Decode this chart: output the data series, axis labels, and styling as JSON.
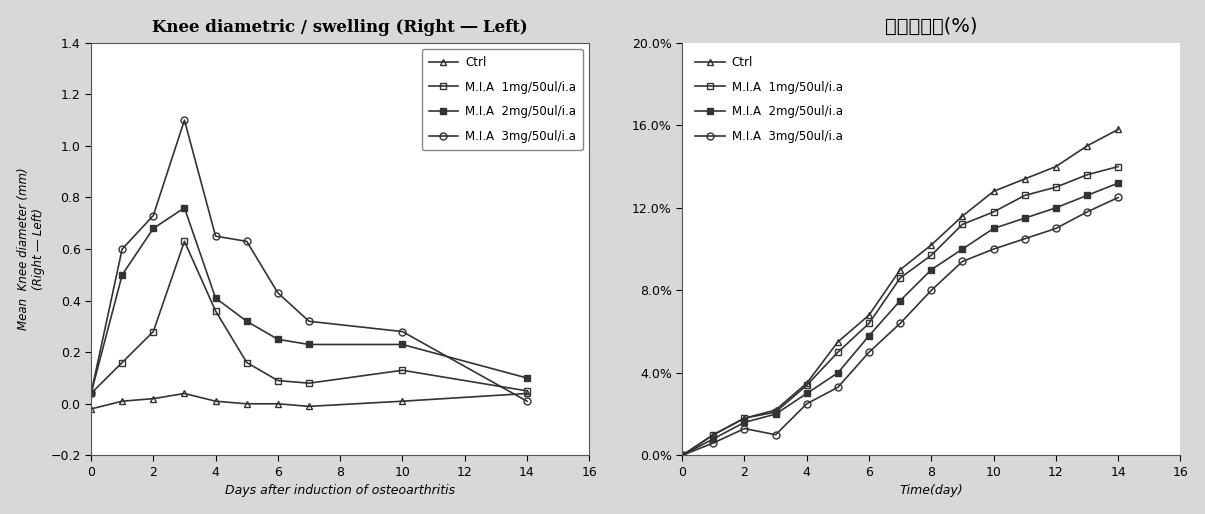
{
  "left_title": "Knee diametric / swelling (Right ― Left)",
  "left_xlabel": "Days after induction of osteoarthritis",
  "left_ylabel": "Mean  Knee diameter (mm)\n(Right ― Left)",
  "left_xlim": [
    0,
    16
  ],
  "left_ylim": [
    -0.2,
    1.4
  ],
  "left_yticks": [
    -0.2,
    0.0,
    0.2,
    0.4,
    0.6,
    0.8,
    1.0,
    1.2,
    1.4
  ],
  "left_xticks": [
    0,
    2,
    4,
    6,
    8,
    10,
    12,
    14,
    16
  ],
  "left_series": {
    "Ctrl": {
      "x": [
        0,
        1,
        2,
        3,
        4,
        5,
        6,
        7,
        10,
        14
      ],
      "y": [
        -0.02,
        0.01,
        0.02,
        0.04,
        0.01,
        0.0,
        0.0,
        -0.01,
        0.01,
        0.04
      ],
      "marker": "^",
      "fillstyle": "none",
      "linewidth": 1.2,
      "markersize": 5,
      "color": "#333333"
    },
    "M.I.A 1mg/50ul/i.a": {
      "x": [
        0,
        1,
        2,
        3,
        4,
        5,
        6,
        7,
        10,
        14
      ],
      "y": [
        0.04,
        0.16,
        0.28,
        0.63,
        0.36,
        0.16,
        0.09,
        0.08,
        0.13,
        0.05
      ],
      "marker": "s",
      "fillstyle": "none",
      "linewidth": 1.2,
      "markersize": 5,
      "color": "#333333"
    },
    "M.I.A 2mg/50ul/i.a": {
      "x": [
        0,
        1,
        2,
        3,
        4,
        5,
        6,
        7,
        10,
        14
      ],
      "y": [
        0.04,
        0.5,
        0.68,
        0.76,
        0.41,
        0.32,
        0.25,
        0.23,
        0.23,
        0.1
      ],
      "marker": "s",
      "fillstyle": "full",
      "linewidth": 1.2,
      "markersize": 5,
      "color": "#333333"
    },
    "M.I.A 3mg/50ul/i.a": {
      "x": [
        0,
        1,
        2,
        3,
        4,
        5,
        6,
        7,
        10,
        14
      ],
      "y": [
        0.04,
        0.6,
        0.73,
        1.1,
        0.65,
        0.63,
        0.43,
        0.32,
        0.28,
        0.01
      ],
      "marker": "o",
      "fillstyle": "none",
      "linewidth": 1.2,
      "markersize": 5,
      "color": "#333333"
    }
  },
  "right_title": "체중증가율(%)",
  "right_xlabel": "Time(day)",
  "right_xlim": [
    0,
    16
  ],
  "right_ylim": [
    0.0,
    0.2
  ],
  "right_yticks": [
    0.0,
    0.04,
    0.08,
    0.12,
    0.16,
    0.2
  ],
  "right_ytick_labels": [
    "0.0%",
    "4.0%",
    "8.0%",
    "12.0%",
    "16.0%",
    "20.0%"
  ],
  "right_xticks": [
    0,
    2,
    4,
    6,
    8,
    10,
    12,
    14,
    16
  ],
  "right_series": {
    "Ctrl": {
      "x": [
        0,
        1,
        2,
        3,
        4,
        5,
        6,
        7,
        8,
        9,
        10,
        11,
        12,
        13,
        14
      ],
      "y": [
        0.0,
        0.01,
        0.018,
        0.022,
        0.035,
        0.055,
        0.068,
        0.09,
        0.102,
        0.116,
        0.128,
        0.134,
        0.14,
        0.15,
        0.158
      ],
      "marker": "^",
      "fillstyle": "none",
      "linewidth": 1.2,
      "markersize": 5,
      "color": "#333333"
    },
    "M.I.A 1mg/50ul/i.a": {
      "x": [
        0,
        1,
        2,
        3,
        4,
        5,
        6,
        7,
        8,
        9,
        10,
        11,
        12,
        13,
        14
      ],
      "y": [
        0.0,
        0.01,
        0.018,
        0.021,
        0.034,
        0.05,
        0.064,
        0.086,
        0.097,
        0.112,
        0.118,
        0.126,
        0.13,
        0.136,
        0.14
      ],
      "marker": "s",
      "fillstyle": "none",
      "linewidth": 1.2,
      "markersize": 5,
      "color": "#333333"
    },
    "M.I.A 2mg/50ul/i.a": {
      "x": [
        0,
        1,
        2,
        3,
        4,
        5,
        6,
        7,
        8,
        9,
        10,
        11,
        12,
        13,
        14
      ],
      "y": [
        0.0,
        0.008,
        0.016,
        0.02,
        0.03,
        0.04,
        0.058,
        0.075,
        0.09,
        0.1,
        0.11,
        0.115,
        0.12,
        0.126,
        0.132
      ],
      "marker": "s",
      "fillstyle": "full",
      "linewidth": 1.2,
      "markersize": 5,
      "color": "#333333"
    },
    "M.I.A 3mg/50ul/i.a": {
      "x": [
        0,
        1,
        2,
        3,
        4,
        5,
        6,
        7,
        8,
        9,
        10,
        11,
        12,
        13,
        14
      ],
      "y": [
        0.0,
        0.006,
        0.013,
        0.01,
        0.025,
        0.033,
        0.05,
        0.064,
        0.08,
        0.094,
        0.1,
        0.105,
        0.11,
        0.118,
        0.125
      ],
      "marker": "o",
      "fillstyle": "none",
      "linewidth": 1.2,
      "markersize": 5,
      "color": "#333333"
    }
  },
  "series_order": [
    "Ctrl",
    "M.I.A 1mg/50ul/i.a",
    "M.I.A 2mg/50ul/i.a",
    "M.I.A 3mg/50ul/i.a"
  ],
  "background_color": "#d8d8d8",
  "plot_background": "#ffffff"
}
